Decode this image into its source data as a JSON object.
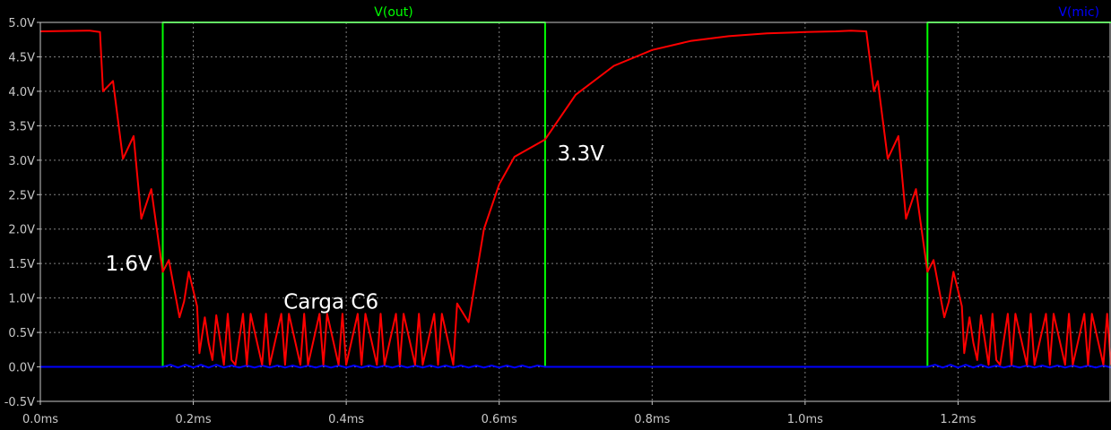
{
  "chart_data": {
    "type": "line",
    "title": "",
    "xlabel": "",
    "ylabel": "",
    "xlim": [
      0,
      1.4
    ],
    "ylim": [
      -0.5,
      5.0
    ],
    "x_unit": "ms",
    "y_unit": "V",
    "grid": true,
    "legend_placement": "top",
    "x_ticks": [
      {
        "value": 0.0,
        "label": "0.0ms"
      },
      {
        "value": 0.2,
        "label": "0.2ms"
      },
      {
        "value": 0.4,
        "label": "0.4ms"
      },
      {
        "value": 0.6,
        "label": "0.6ms"
      },
      {
        "value": 0.8,
        "label": "0.8ms"
      },
      {
        "value": 1.0,
        "label": "1.0ms"
      },
      {
        "value": 1.2,
        "label": "1.2ms"
      }
    ],
    "y_ticks": [
      {
        "value": 5.0,
        "label": "5.0V"
      },
      {
        "value": 4.5,
        "label": "4.5V"
      },
      {
        "value": 4.0,
        "label": "4.0V"
      },
      {
        "value": 3.5,
        "label": "3.5V"
      },
      {
        "value": 3.0,
        "label": "3.0V"
      },
      {
        "value": 2.5,
        "label": "2.5V"
      },
      {
        "value": 2.0,
        "label": "2.0V"
      },
      {
        "value": 1.5,
        "label": "1.5V"
      },
      {
        "value": 1.0,
        "label": "1.0V"
      },
      {
        "value": 0.5,
        "label": "0.5V"
      },
      {
        "value": 0.0,
        "label": "0.0V"
      },
      {
        "value": -0.5,
        "label": "-0.5V"
      }
    ],
    "series": [
      {
        "name": "V(out)",
        "color": "#00ff00",
        "legend_x": 0.33,
        "x": [
          0.0,
          0.16,
          0.16,
          0.66,
          0.66,
          1.16,
          1.16,
          1.4
        ],
        "y": [
          0.0,
          0.0,
          5.0,
          5.0,
          0.0,
          0.0,
          5.0,
          5.0
        ]
      },
      {
        "name": "V(mic)",
        "color": "#0000ff",
        "legend_x": 0.97,
        "x": [
          0.0,
          0.16,
          0.17,
          0.18,
          0.19,
          0.2,
          0.21,
          0.22,
          0.23,
          0.24,
          0.25,
          0.26,
          0.27,
          0.28,
          0.29,
          0.3,
          0.31,
          0.32,
          0.33,
          0.34,
          0.35,
          0.36,
          0.37,
          0.38,
          0.39,
          0.4,
          0.41,
          0.42,
          0.43,
          0.44,
          0.45,
          0.46,
          0.47,
          0.48,
          0.49,
          0.5,
          0.51,
          0.52,
          0.53,
          0.54,
          0.55,
          0.56,
          0.57,
          0.58,
          0.59,
          0.6,
          0.61,
          0.62,
          0.63,
          0.64,
          0.65,
          0.66,
          1.16,
          1.17,
          1.18,
          1.19,
          1.2,
          1.21,
          1.22,
          1.23,
          1.24,
          1.25,
          1.26,
          1.27,
          1.28,
          1.29,
          1.3,
          1.31,
          1.32,
          1.33,
          1.34,
          1.35,
          1.36,
          1.37,
          1.38,
          1.39,
          1.4
        ],
        "y": [
          0.0,
          0.0,
          0.03,
          -0.01,
          0.03,
          -0.01,
          0.03,
          -0.01,
          0.03,
          -0.01,
          0.02,
          -0.01,
          0.02,
          -0.01,
          0.02,
          -0.01,
          0.02,
          -0.01,
          0.02,
          -0.01,
          0.02,
          -0.01,
          0.02,
          -0.01,
          0.02,
          -0.01,
          0.02,
          -0.01,
          0.02,
          -0.01,
          0.02,
          -0.01,
          0.02,
          -0.01,
          0.02,
          -0.01,
          0.02,
          -0.01,
          0.02,
          -0.01,
          0.02,
          -0.01,
          0.02,
          -0.01,
          0.02,
          -0.01,
          0.02,
          -0.01,
          0.02,
          -0.01,
          0.02,
          0.0,
          0.0,
          0.03,
          -0.01,
          0.03,
          -0.01,
          0.03,
          -0.01,
          0.03,
          -0.01,
          0.02,
          -0.01,
          0.02,
          -0.01,
          0.02,
          -0.01,
          0.02,
          -0.01,
          0.02,
          -0.01,
          0.02,
          -0.01,
          0.02,
          -0.01,
          0.02,
          -0.01
        ]
      },
      {
        "name": "",
        "color": "#ff0000",
        "x": [
          0.0,
          0.06,
          0.065,
          0.078,
          0.082,
          0.095,
          0.108,
          0.122,
          0.132,
          0.145,
          0.16,
          0.168,
          0.182,
          0.188,
          0.194,
          0.205,
          0.208,
          0.215,
          0.22,
          0.225,
          0.23,
          0.24,
          0.245,
          0.25,
          0.255,
          0.265,
          0.27,
          0.275,
          0.29,
          0.295,
          0.3,
          0.315,
          0.32,
          0.325,
          0.34,
          0.345,
          0.35,
          0.365,
          0.37,
          0.375,
          0.39,
          0.395,
          0.4,
          0.415,
          0.42,
          0.425,
          0.44,
          0.445,
          0.45,
          0.465,
          0.47,
          0.475,
          0.49,
          0.495,
          0.5,
          0.515,
          0.52,
          0.525,
          0.54,
          0.545,
          0.56,
          0.58,
          0.6,
          0.62,
          0.66,
          0.7,
          0.75,
          0.8,
          0.85,
          0.9,
          0.95,
          1.0,
          1.04,
          1.06,
          1.08,
          1.09,
          1.095,
          1.108,
          1.122,
          1.132,
          1.145,
          1.16,
          1.168,
          1.182,
          1.188,
          1.194,
          1.205,
          1.208,
          1.215,
          1.22,
          1.225,
          1.23,
          1.24,
          1.245,
          1.25,
          1.255,
          1.265,
          1.27,
          1.275,
          1.29,
          1.295,
          1.3,
          1.315,
          1.32,
          1.325,
          1.34,
          1.345,
          1.35,
          1.365,
          1.37,
          1.375,
          1.39,
          1.395,
          1.4
        ],
        "y": [
          4.87,
          4.88,
          4.88,
          4.86,
          4.0,
          4.15,
          3.02,
          3.35,
          2.15,
          2.58,
          1.38,
          1.55,
          0.72,
          0.95,
          1.38,
          0.88,
          0.2,
          0.72,
          0.35,
          0.1,
          0.75,
          0.03,
          0.77,
          0.1,
          0.03,
          0.77,
          0.03,
          0.77,
          0.03,
          0.77,
          0.03,
          0.77,
          0.03,
          0.77,
          0.03,
          0.77,
          0.03,
          0.77,
          0.03,
          0.77,
          0.03,
          0.77,
          0.03,
          0.77,
          0.03,
          0.77,
          0.03,
          0.77,
          0.03,
          0.77,
          0.03,
          0.77,
          0.03,
          0.77,
          0.03,
          0.77,
          0.03,
          0.77,
          0.03,
          0.92,
          0.65,
          2.0,
          2.65,
          3.05,
          3.3,
          3.95,
          4.37,
          4.6,
          4.73,
          4.8,
          4.84,
          4.86,
          4.87,
          4.88,
          4.87,
          4.0,
          4.15,
          3.02,
          3.35,
          2.15,
          2.58,
          1.38,
          1.55,
          0.72,
          0.95,
          1.38,
          0.88,
          0.2,
          0.72,
          0.35,
          0.1,
          0.75,
          0.03,
          0.77,
          0.1,
          0.03,
          0.77,
          0.03,
          0.77,
          0.03,
          0.77,
          0.03,
          0.77,
          0.03,
          0.77,
          0.03,
          0.77,
          0.03,
          0.77,
          0.03,
          0.77,
          0.03,
          0.77,
          0.03
        ]
      }
    ],
    "annotations": [
      {
        "text": "1.6V",
        "x": 0.085,
        "y": 1.5
      },
      {
        "text": "Carga C6",
        "x": 0.318,
        "y": 0.95
      },
      {
        "text": "3.3V",
        "x": 0.676,
        "y": 3.1
      }
    ]
  }
}
